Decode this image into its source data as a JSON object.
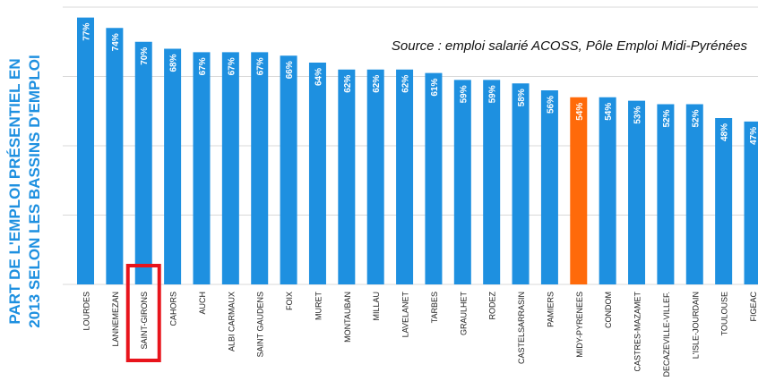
{
  "chart_data": {
    "type": "bar",
    "title_lines": [
      "PART DE L'EMPLOI PRÉSENTIEL EN",
      "2013 SELON LES BASSINS D'EMPLOI"
    ],
    "source": "Source : emploi salarié ACOSS, Pôle Emploi Midi-Pyrénées",
    "categories": [
      "LOURDES",
      "LANNEMEZAN",
      "SAINT-GIRONS",
      "CAHORS",
      "AUCH",
      "ALBI CARMAUX",
      "SAINT GAUDENS",
      "FOIX",
      "MURET",
      "MONTAUBAN",
      "MILLAU",
      "LAVELANET",
      "TARBES",
      "GRAULHET",
      "RODEZ",
      "CASTELSARRASIN",
      "PAMIERS",
      "MIDY-PYRENEES",
      "CONDOM",
      "CASTRES-MAZAMET",
      "DECAZEVILLE-VILLEF.",
      "L'ISLE-JOURDAIN",
      "TOULOUSE",
      "FIGEAC"
    ],
    "values": [
      77,
      74,
      70,
      68,
      67,
      67,
      67,
      66,
      64,
      62,
      62,
      62,
      61,
      59,
      59,
      58,
      56,
      54,
      54,
      53,
      52,
      52,
      48,
      47
    ],
    "value_labels": [
      "77%",
      "74%",
      "70%",
      "68%",
      "67%",
      "67%",
      "67%",
      "66%",
      "64%",
      "62%",
      "62%",
      "62%",
      "61%",
      "59%",
      "59%",
      "58%",
      "56%",
      "54%",
      "54%",
      "53%",
      "52%",
      "52%",
      "48%",
      "47%"
    ],
    "highlight_index": 17,
    "boxed_index": 2,
    "colors": {
      "bar": "#1e90e0",
      "highlight": "#ff6a0a",
      "title": "#1e90e0",
      "grid": "#d9d9d9",
      "box": "#e8141c"
    },
    "ylim": [
      0,
      80
    ],
    "grid": true
  }
}
